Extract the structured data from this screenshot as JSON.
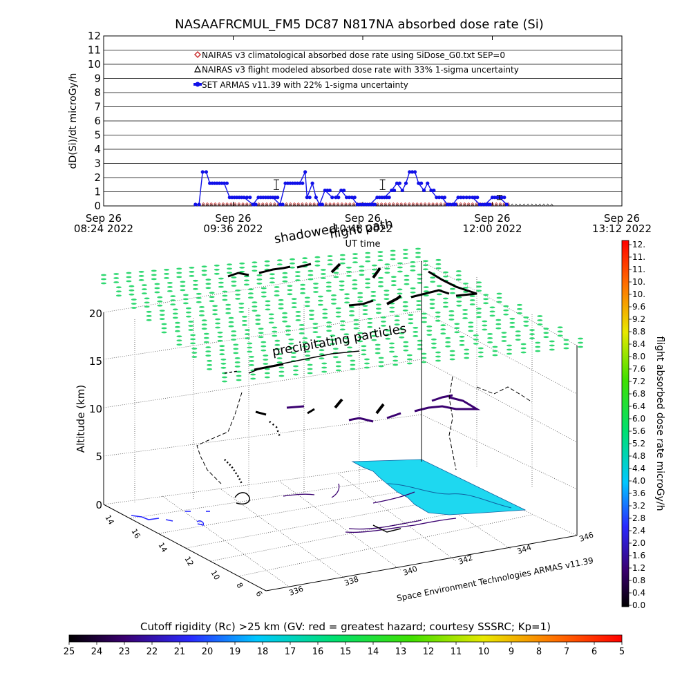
{
  "title": "NASAAFRCMUL_FM5 DC87 N817NA absorbed dose rate (Si)",
  "top_chart": {
    "ylabel": "dD(Si)/dt microGy/h",
    "xlabel": "UT time",
    "yticks": [
      "0",
      "1",
      "2",
      "3",
      "4",
      "5",
      "6",
      "7",
      "8",
      "9",
      "10",
      "11",
      "12"
    ],
    "xticks": [
      {
        "line1": "Sep 26",
        "line2": "08:24 2022"
      },
      {
        "line1": "Sep 26",
        "line2": "09:36 2022"
      },
      {
        "line1": "Sep 26",
        "line2": "10:48 2022"
      },
      {
        "line1": "Sep 26",
        "line2": "12:00 2022"
      },
      {
        "line1": "Sep 26",
        "line2": "13:12 2022"
      }
    ],
    "legend": [
      {
        "label": "NAIRAS v3 climatological absorbed dose rate using SiDose_G0.txt SEP=0",
        "color": "#cc3333",
        "marker": "diamond"
      },
      {
        "label": "NAIRAS v3 flight modeled absorbed dose rate with 33% 1-sigma uncertainty",
        "color": "#000000",
        "marker": "triangle"
      },
      {
        "label": "SET ARMAS v11.39 with 22% 1-sigma uncertainty",
        "color": "#1010e8",
        "marker": "dot"
      }
    ]
  },
  "chart_data": {
    "type": "scatter",
    "title": "NASAAFRCMUL_FM5 DC87 N817NA absorbed dose rate (Si)",
    "xlabel": "UT time",
    "ylabel": "dD(Si)/dt microGy/h",
    "xlim_minutes_since_0824": [
      0,
      288
    ],
    "ylim": [
      0,
      12
    ],
    "series": [
      {
        "name": "SET ARMAS v11.39 with 22% 1-sigma uncertainty",
        "points": [
          [
            51,
            0.1
          ],
          [
            53,
            0.1
          ],
          [
            55,
            2.4
          ],
          [
            57,
            2.4
          ],
          [
            59,
            1.6
          ],
          [
            63,
            1.6
          ],
          [
            67,
            1.6
          ],
          [
            70,
            0.6
          ],
          [
            74,
            0.6
          ],
          [
            78,
            0.6
          ],
          [
            83,
            0.1
          ],
          [
            86,
            0.6
          ],
          [
            90,
            0.6
          ],
          [
            94,
            0.6
          ],
          [
            98,
            0.1
          ],
          [
            101,
            1.6
          ],
          [
            105,
            1.6
          ],
          [
            109,
            1.6
          ],
          [
            112,
            2.4
          ],
          [
            113,
            0.6
          ],
          [
            116,
            1.6
          ],
          [
            118,
            0.6
          ],
          [
            120,
            0.1
          ],
          [
            123,
            1.1
          ],
          [
            127,
            0.6
          ],
          [
            129,
            0.6
          ],
          [
            132,
            1.1
          ],
          [
            135,
            0.6
          ],
          [
            138,
            0.6
          ],
          [
            141,
            0.1
          ],
          [
            144,
            0.1
          ],
          [
            148,
            0.1
          ],
          [
            152,
            0.6
          ],
          [
            156,
            0.6
          ],
          [
            160,
            1.1
          ],
          [
            163,
            1.6
          ],
          [
            166,
            1.1
          ],
          [
            168,
            1.6
          ],
          [
            170,
            2.4
          ],
          [
            173,
            2.4
          ],
          [
            175,
            1.6
          ],
          [
            178,
            1.1
          ],
          [
            180,
            1.6
          ],
          [
            182,
            1.1
          ],
          [
            185,
            0.6
          ],
          [
            188,
            0.6
          ],
          [
            191,
            0.1
          ],
          [
            194,
            0.1
          ],
          [
            197,
            0.6
          ],
          [
            200,
            0.6
          ],
          [
            205,
            0.6
          ],
          [
            209,
            0.1
          ],
          [
            212,
            0.1
          ],
          [
            216,
            0.6
          ],
          [
            220,
            0.6
          ],
          [
            224,
            0.1
          ]
        ],
        "error_bars": [
          {
            "x": 96,
            "y": 1.5,
            "err": 0.35
          },
          {
            "x": 155,
            "y": 1.5,
            "err": 0.35
          },
          {
            "x": 220,
            "y": 0.6,
            "err": 0.15
          }
        ]
      },
      {
        "name": "NAIRAS v3 climatological absorbed dose rate using SiDose_G0.txt SEP=0",
        "x_range": [
          51,
          225
        ],
        "value": 0.03
      },
      {
        "name": "NAIRAS v3 flight modeled absorbed dose rate with 33% 1-sigma uncertainty",
        "x_range": [
          51,
          250
        ],
        "value": 0.0
      }
    ]
  },
  "scene": {
    "annotation_shadowed": "shadowed",
    "annotation_flight_path": "flight path",
    "annotation_precipitating": "precipitating particles",
    "altitude_label": "Altitude (km)",
    "altitude_ticks": [
      "0",
      "5",
      "10",
      "15",
      "20"
    ],
    "lat_ticks": [
      "14",
      "16",
      "14",
      "12",
      "10",
      "8",
      "6"
    ],
    "lon_ticks": [
      "336",
      "338",
      "340",
      "342",
      "344",
      "346"
    ],
    "credit": "Space Environment Technologies ARMAS v11.39"
  },
  "colorbar_right": {
    "title": "flight absorbed dose rate microGy/h",
    "ticks": [
      "12.",
      "11.",
      "11.",
      "10.",
      "10.",
      "9.6",
      "9.2",
      "8.8",
      "8.4",
      "8.0",
      "7.6",
      "7.2",
      "6.8",
      "6.4",
      "6.0",
      "5.6",
      "5.2",
      "4.8",
      "4.4",
      "4.0",
      "3.6",
      "3.2",
      "2.8",
      "2.4",
      "2.0",
      "1.6",
      "1.2",
      "0.8",
      "0.4",
      "0.0"
    ]
  },
  "colorbar_bottom": {
    "title": "Cutoff rigidity (Rc) >25 km (GV: red = greatest hazard; courtesy SSSRC; Kp=1)",
    "ticks": [
      "25",
      "24",
      "23",
      "22",
      "21",
      "20",
      "19",
      "18",
      "17",
      "16",
      "15",
      "14",
      "13",
      "12",
      "11",
      "10",
      "9",
      "8",
      "7",
      "6",
      "5"
    ]
  }
}
